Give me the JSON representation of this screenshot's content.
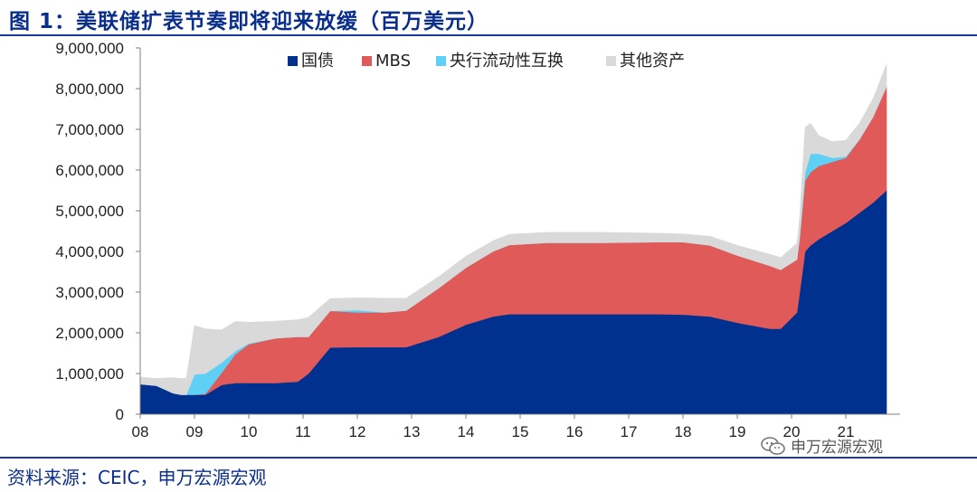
{
  "title": "图 1：美联储扩表节奏即将迎来放缓（百万美元）",
  "source": "资料来源：CEIC，申万宏源宏观",
  "watermark": {
    "text": "申万宏源宏观",
    "icon": "wechat-icon"
  },
  "chart_data": {
    "type": "area",
    "stacked": true,
    "x_unit": "year (two-digit, 08 = 2008)",
    "x_ticks": [
      "08",
      "09",
      "10",
      "11",
      "12",
      "13",
      "14",
      "15",
      "16",
      "17",
      "18",
      "19",
      "20",
      "21"
    ],
    "ylim": [
      0,
      9000000
    ],
    "y_ticks": [
      "0",
      "1,000,000",
      "2,000,000",
      "3,000,000",
      "4,000,000",
      "5,000,000",
      "6,000,000",
      "7,000,000",
      "8,000,000",
      "9,000,000"
    ],
    "legend_position": "top",
    "grid": false,
    "x": [
      2008.0,
      2008.3,
      2008.6,
      2008.75,
      2008.85,
      2009.0,
      2009.2,
      2009.5,
      2009.75,
      2010.0,
      2010.5,
      2010.9,
      2011.1,
      2011.5,
      2012.0,
      2012.5,
      2012.9,
      2013.5,
      2014.0,
      2014.5,
      2014.8,
      2015.5,
      2016.5,
      2017.5,
      2018.0,
      2018.5,
      2019.0,
      2019.6,
      2019.8,
      2020.1,
      2020.15,
      2020.25,
      2020.35,
      2020.5,
      2020.75,
      2021.0,
      2021.25,
      2021.5,
      2021.75
    ],
    "series": [
      {
        "name": "国债",
        "color": "#00318f",
        "values": [
          740000,
          700000,
          520000,
          480000,
          480000,
          480000,
          480000,
          720000,
          770000,
          770000,
          770000,
          800000,
          1000000,
          1640000,
          1650000,
          1650000,
          1650000,
          1900000,
          2200000,
          2400000,
          2460000,
          2460000,
          2460000,
          2460000,
          2450000,
          2400000,
          2250000,
          2100000,
          2100000,
          2500000,
          3000000,
          4000000,
          4150000,
          4300000,
          4500000,
          4700000,
          4950000,
          5200000,
          5500000
        ]
      },
      {
        "name": "MBS",
        "color": "#e05a5a",
        "values": [
          0,
          0,
          0,
          0,
          0,
          0,
          20000,
          300000,
          700000,
          950000,
          1100000,
          1100000,
          900000,
          900000,
          850000,
          850000,
          900000,
          1200000,
          1400000,
          1600000,
          1700000,
          1750000,
          1750000,
          1770000,
          1780000,
          1750000,
          1650000,
          1550000,
          1450000,
          1300000,
          1350000,
          1750000,
          1800000,
          1800000,
          1700000,
          1600000,
          1800000,
          2100000,
          2550000
        ]
      },
      {
        "name": "央行流动性互换",
        "color": "#5fd0f5",
        "values": [
          0,
          0,
          0,
          0,
          0,
          500000,
          500000,
          250000,
          80000,
          20000,
          0,
          0,
          0,
          0,
          60000,
          0,
          0,
          0,
          0,
          0,
          0,
          0,
          0,
          0,
          0,
          0,
          0,
          0,
          0,
          0,
          0,
          200000,
          450000,
          300000,
          100000,
          30000,
          0,
          0,
          0
        ]
      },
      {
        "name": "其他资产",
        "color": "#d9d9d9",
        "values": [
          170000,
          180000,
          380000,
          400000,
          400000,
          1200000,
          1100000,
          800000,
          730000,
          520000,
          420000,
          420000,
          480000,
          300000,
          300000,
          350000,
          300000,
          280000,
          280000,
          260000,
          260000,
          260000,
          260000,
          220000,
          200000,
          220000,
          250000,
          280000,
          300000,
          400000,
          500000,
          1100000,
          750000,
          450000,
          400000,
          400000,
          400000,
          450000,
          550000
        ]
      }
    ]
  }
}
